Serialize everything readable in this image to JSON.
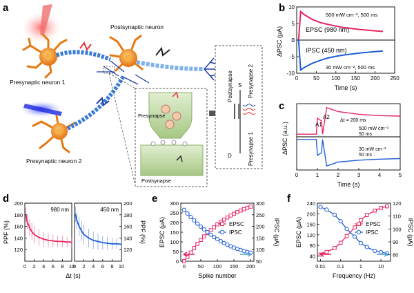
{
  "panel_labels": {
    "a": "a",
    "b": "b",
    "c": "c",
    "d": "d",
    "e": "e",
    "f": "f"
  },
  "schematic": {
    "postsynaptic_neuron": "Postsynaptic neuron",
    "presynaptic_neuron_1": "Presynaptic neuron 1",
    "presynaptic_neuron_2": "Presynaptic neuron 2",
    "presynapse": "Presynapse",
    "postsynapse": "Postsynapse",
    "device_postsynapse": "Postsynapse",
    "device_presynapse_2": "Presynapse 2",
    "device_presynapse_1": "Presynapse 1",
    "device_S": "S",
    "device_D": "D",
    "colors": {
      "neuron": "#f08a1c",
      "axon_blue": "#3a7bd5",
      "laser_red": "#e8333a",
      "laser_blue": "#2233dd",
      "synapse_green": "#b9d49a"
    }
  },
  "chart_data": [
    {
      "panel": "b",
      "type": "line",
      "ylabel": "ΔPSC (μA)",
      "xlabel": "Time (s)",
      "top": {
        "label": "EPSC (980 nm)",
        "note": "500 mW cm⁻², 500 ms",
        "color": "#e8245e",
        "x": [
          0,
          5,
          10,
          20,
          40,
          60,
          80,
          100,
          120,
          140,
          160,
          180,
          200,
          220
        ],
        "y": [
          0,
          0,
          8.6,
          7.6,
          6.2,
          5.3,
          4.7,
          4.2,
          3.8,
          3.5,
          3.2,
          3.0,
          2.8,
          2.6
        ],
        "ylim": [
          0,
          10
        ],
        "yticks": [
          0,
          5,
          10
        ]
      },
      "bottom": {
        "label": "IPSC (450 nm)",
        "note": "30 mW cm⁻², 500 ms",
        "color": "#1f5fd6",
        "x": [
          0,
          5,
          10,
          20,
          40,
          60,
          80,
          100,
          120,
          140,
          160,
          180,
          200,
          220
        ],
        "y": [
          0,
          0,
          -9.0,
          -8.2,
          -7.0,
          -6.1,
          -5.4,
          -4.9,
          -4.5,
          -4.2,
          -3.9,
          -3.7,
          -3.5,
          -3.3
        ],
        "ylim": [
          -10,
          0
        ],
        "yticks": [
          -10,
          -5,
          0
        ]
      },
      "xlim": [
        0,
        250
      ],
      "xticks": [
        0,
        50,
        100,
        150,
        200,
        250
      ]
    },
    {
      "panel": "c",
      "type": "line",
      "ylabel": "ΔPSC (a.u.)",
      "xlabel": "Time (s)",
      "xlim": [
        0,
        5
      ],
      "xticks": [
        0,
        1,
        2,
        3,
        4,
        5
      ],
      "annotations": {
        "A1": "A1",
        "A2": "A2",
        "dt": "Δt = 200 ms",
        "top_note": "500 mW cm⁻²",
        "top_note2": "50 ms",
        "bot_note": "30 mW cm⁻²",
        "bot_note2": "50 ms"
      },
      "top": {
        "color": "#e8245e",
        "x": [
          0,
          0.95,
          1.0,
          1.2,
          1.25,
          1.45,
          2,
          3,
          4,
          5
        ],
        "y": [
          0,
          0,
          0.6,
          0.5,
          0,
          1.0,
          0.85,
          0.75,
          0.7,
          0.68
        ]
      },
      "bottom": {
        "color": "#1f5fd6",
        "x": [
          0,
          0.95,
          1.0,
          1.2,
          1.25,
          1.45,
          2,
          3,
          4,
          5
        ],
        "y": [
          0,
          0,
          -0.6,
          -0.5,
          0,
          -1.0,
          -0.85,
          -0.78,
          -0.74,
          -0.72
        ]
      }
    },
    {
      "panel": "d",
      "type": "line",
      "ylabel": "PPF (%)",
      "ylabel_right": "PPF (%)",
      "xlabel": "Δt (s)",
      "ylim": [
        100,
        200
      ],
      "yticks": [
        120,
        140,
        160,
        180,
        200
      ],
      "left": {
        "label": "980 nm",
        "color": "#e8245e",
        "xlim": [
          0,
          10
        ],
        "xticks": [
          0,
          2,
          4,
          6,
          8,
          10
        ],
        "x": [
          0.2,
          0.5,
          1,
          1.5,
          2,
          3,
          4,
          5,
          6,
          7,
          8,
          9,
          10
        ],
        "y": [
          180,
          168,
          158,
          151,
          146,
          141,
          138,
          136,
          135,
          134,
          134,
          133,
          133
        ],
        "err": [
          12,
          13,
          14,
          15,
          15,
          14,
          13,
          12,
          11,
          10,
          10,
          9,
          9
        ]
      },
      "right": {
        "label": "450 nm",
        "color": "#1f5fd6",
        "xlim": [
          0,
          10
        ],
        "xticks": [
          0,
          2,
          4,
          6,
          8,
          10
        ],
        "x": [
          0.2,
          0.5,
          1,
          1.5,
          2,
          3,
          4,
          5,
          6,
          7,
          8,
          9,
          10
        ],
        "y": [
          181,
          170,
          160,
          152,
          146,
          140,
          136,
          134,
          132,
          131,
          130,
          130,
          129
        ],
        "err": [
          13,
          15,
          16,
          17,
          17,
          16,
          15,
          14,
          12,
          11,
          10,
          9,
          8
        ]
      }
    },
    {
      "panel": "e",
      "type": "line",
      "xlabel": "Spike number",
      "ylabel": "EPSC (μA)",
      "ylabel_right": "IPSC (μA)",
      "xlim": [
        -10,
        210
      ],
      "xticks": [
        0,
        50,
        100,
        150,
        200
      ],
      "ylim_left": [
        0,
        300
      ],
      "yticks_left": [
        0,
        50,
        100,
        150,
        200,
        250,
        300
      ],
      "ylim_right": [
        50,
        300
      ],
      "yticks_right": [
        50,
        100,
        150,
        200,
        250,
        300
      ],
      "series": [
        {
          "name": "EPSC",
          "color": "#e8245e",
          "axis": "left",
          "x": [
            0,
            10,
            20,
            30,
            40,
            50,
            60,
            70,
            80,
            90,
            100,
            110,
            120,
            130,
            140,
            150,
            160,
            170,
            180,
            190,
            200
          ],
          "y": [
            0,
            22,
            45,
            68,
            90,
            110,
            128,
            145,
            160,
            175,
            190,
            203,
            215,
            226,
            236,
            245,
            254,
            262,
            269,
            276,
            282
          ]
        },
        {
          "name": "IPSC",
          "color": "#1f5fd6",
          "axis": "right",
          "x": [
            0,
            10,
            20,
            30,
            40,
            50,
            60,
            70,
            80,
            90,
            100,
            110,
            120,
            130,
            140,
            150,
            160,
            170,
            180,
            190,
            200
          ],
          "y": [
            271,
            255,
            240,
            226,
            212,
            199,
            187,
            175,
            164,
            154,
            145,
            136,
            128,
            121,
            114,
            108,
            103,
            98,
            94,
            90,
            87
          ]
        }
      ]
    },
    {
      "panel": "f",
      "type": "line",
      "xlabel": "Frequency (Hz)",
      "ylabel": "EPSC (μA)",
      "ylabel_right": "IPSC (μA)",
      "xscale": "log",
      "xlim": [
        0.007,
        30
      ],
      "xticks": [
        0.01,
        0.1,
        1,
        10
      ],
      "xtick_labels": [
        "0.01",
        "0.1",
        "1",
        "10"
      ],
      "ylim_left": [
        20,
        240
      ],
      "yticks_left": [
        40,
        80,
        120,
        160,
        200,
        240
      ],
      "ylim_right": [
        75,
        120
      ],
      "yticks_right": [
        80,
        90,
        100,
        110,
        120
      ],
      "series": [
        {
          "name": "EPSC",
          "color": "#e8245e",
          "axis": "left",
          "x": [
            0.01,
            0.02,
            0.05,
            0.1,
            0.2,
            0.5,
            1,
            2,
            5,
            10,
            20
          ],
          "y": [
            45,
            55,
            70,
            90,
            115,
            148,
            175,
            195,
            212,
            222,
            228
          ]
        },
        {
          "name": "IPSC",
          "color": "#1f5fd6",
          "axis": "right",
          "x": [
            0.01,
            0.02,
            0.05,
            0.1,
            0.2,
            0.5,
            1,
            2,
            5,
            10,
            20
          ],
          "y": [
            117,
            115,
            111,
            106,
            100,
            94,
            89,
            86,
            83,
            82,
            81
          ]
        }
      ]
    }
  ]
}
